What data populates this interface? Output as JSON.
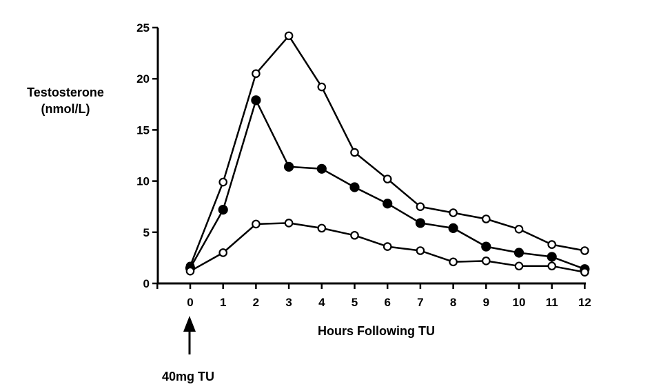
{
  "chart_data": {
    "type": "line",
    "ylabel_lines": [
      "Testosterone",
      "(nmol/L)"
    ],
    "xlabel": "Hours Following TU",
    "annotation": "40mg TU",
    "x": [
      0,
      1,
      2,
      3,
      4,
      5,
      6,
      7,
      8,
      9,
      10,
      11,
      12
    ],
    "xlim": [
      -1,
      12
    ],
    "ylim": [
      0,
      25
    ],
    "yticks": [
      0,
      5,
      10,
      15,
      20,
      25
    ],
    "grid": false,
    "series": [
      {
        "marker": "open",
        "values": [
          1.7,
          9.9,
          20.5,
          24.2,
          19.2,
          12.8,
          10.2,
          7.5,
          6.9,
          6.3,
          5.3,
          3.8,
          3.2
        ]
      },
      {
        "marker": "filled",
        "values": [
          1.5,
          7.2,
          17.9,
          11.4,
          11.2,
          9.4,
          7.8,
          5.9,
          5.4,
          3.6,
          3.0,
          2.6,
          1.4
        ]
      },
      {
        "marker": "open",
        "values": [
          1.2,
          3.0,
          5.8,
          5.9,
          5.4,
          4.7,
          3.6,
          3.2,
          2.1,
          2.2,
          1.7,
          1.7,
          1.1
        ]
      }
    ]
  }
}
